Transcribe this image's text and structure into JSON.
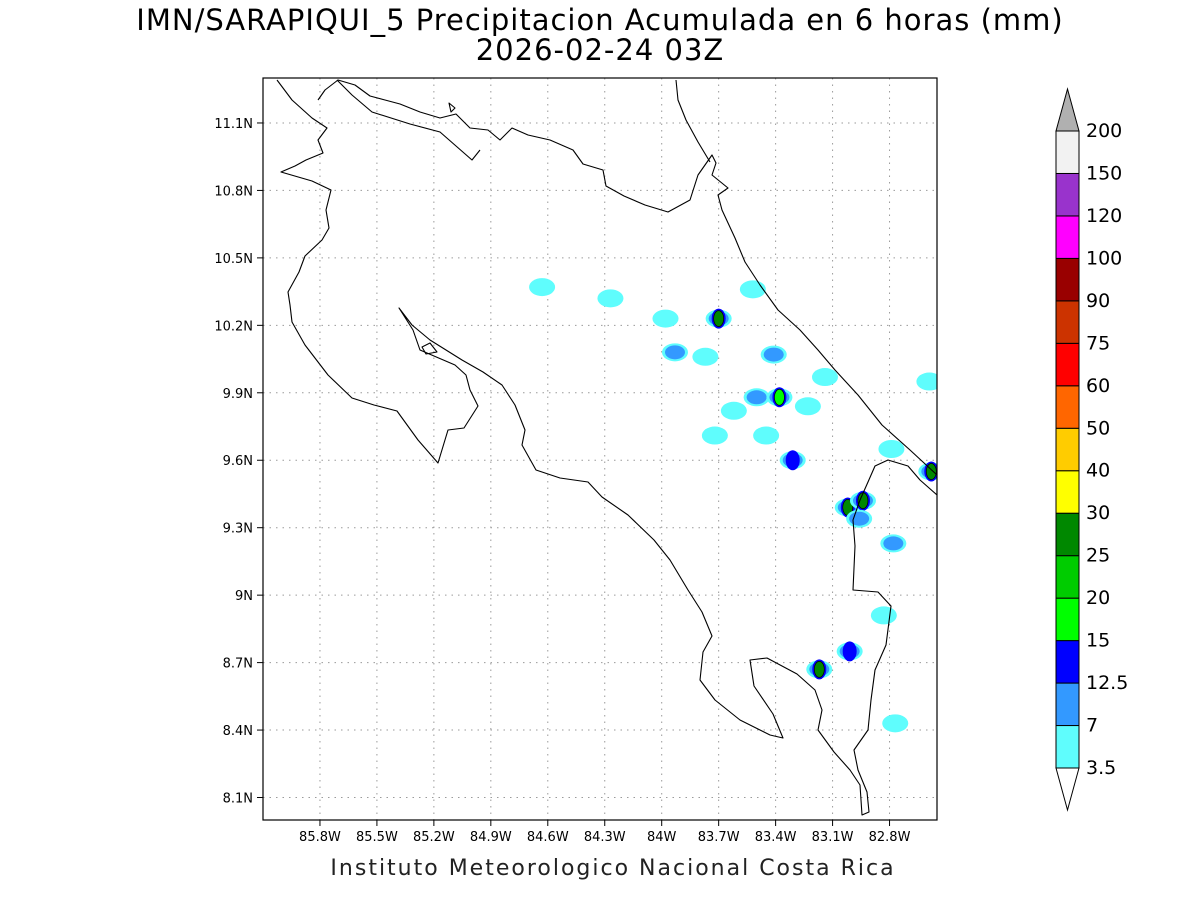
{
  "title": {
    "line1": "IMN/SARAPIQUI_5 Precipitacion Acumulada en 6 horas (mm)",
    "line2": "2026-02-24 03Z"
  },
  "footer": "Instituto Meteorologico Nacional Costa Rica",
  "map": {
    "lon_range": [
      -86.1,
      -82.55
    ],
    "lat_range": [
      8.0,
      11.3
    ],
    "lon_ticks": [
      {
        "v": -85.8,
        "label": "85.8W"
      },
      {
        "v": -85.5,
        "label": "85.5W"
      },
      {
        "v": -85.2,
        "label": "85.2W"
      },
      {
        "v": -84.9,
        "label": "84.9W"
      },
      {
        "v": -84.6,
        "label": "84.6W"
      },
      {
        "v": -84.3,
        "label": "84.3W"
      },
      {
        "v": -84.0,
        "label": "84W"
      },
      {
        "v": -83.7,
        "label": "83.7W"
      },
      {
        "v": -83.4,
        "label": "83.4W"
      },
      {
        "v": -83.1,
        "label": "83.1W"
      },
      {
        "v": -82.8,
        "label": "82.8W"
      }
    ],
    "lat_ticks": [
      {
        "v": 11.1,
        "label": "11.1N"
      },
      {
        "v": 10.8,
        "label": "10.8N"
      },
      {
        "v": 10.5,
        "label": "10.5N"
      },
      {
        "v": 10.2,
        "label": "10.2N"
      },
      {
        "v": 9.9,
        "label": "9.9N"
      },
      {
        "v": 9.6,
        "label": "9.6N"
      },
      {
        "v": 9.3,
        "label": "9.3N"
      },
      {
        "v": 9.0,
        "label": "9N"
      },
      {
        "v": 8.7,
        "label": "8.7N"
      },
      {
        "v": 8.4,
        "label": "8.4N"
      },
      {
        "v": 8.1,
        "label": "8.1N"
      }
    ],
    "grid": "dotted",
    "precip_cells": [
      {
        "lon": -84.63,
        "lat": 10.37,
        "value": 3.5
      },
      {
        "lon": -84.27,
        "lat": 10.32,
        "value": 3.5
      },
      {
        "lon": -83.98,
        "lat": 10.23,
        "value": 3.5
      },
      {
        "lon": -83.7,
        "lat": 10.23,
        "value": 25
      },
      {
        "lon": -83.52,
        "lat": 10.36,
        "value": 3.5
      },
      {
        "lon": -83.93,
        "lat": 10.08,
        "value": 7
      },
      {
        "lon": -83.77,
        "lat": 10.06,
        "value": 3.5
      },
      {
        "lon": -83.41,
        "lat": 10.07,
        "value": 7
      },
      {
        "lon": -83.5,
        "lat": 9.88,
        "value": 7
      },
      {
        "lon": -83.38,
        "lat": 9.88,
        "value": 15
      },
      {
        "lon": -83.62,
        "lat": 9.82,
        "value": 3.5
      },
      {
        "lon": -83.72,
        "lat": 9.71,
        "value": 3.5
      },
      {
        "lon": -83.23,
        "lat": 9.84,
        "value": 3.5
      },
      {
        "lon": -83.14,
        "lat": 9.97,
        "value": 3.5
      },
      {
        "lon": -83.45,
        "lat": 9.71,
        "value": 3.5
      },
      {
        "lon": -83.31,
        "lat": 9.6,
        "value": 12.5
      },
      {
        "lon": -83.02,
        "lat": 9.39,
        "value": 25
      },
      {
        "lon": -82.94,
        "lat": 9.42,
        "value": 25
      },
      {
        "lon": -82.96,
        "lat": 9.34,
        "value": 7
      },
      {
        "lon": -82.79,
        "lat": 9.65,
        "value": 3.5
      },
      {
        "lon": -82.58,
        "lat": 9.55,
        "value": 25
      },
      {
        "lon": -82.59,
        "lat": 9.95,
        "value": 3.5
      },
      {
        "lon": -82.78,
        "lat": 9.23,
        "value": 7
      },
      {
        "lon": -83.17,
        "lat": 8.67,
        "value": 25
      },
      {
        "lon": -83.01,
        "lat": 8.75,
        "value": 12.5
      },
      {
        "lon": -82.83,
        "lat": 8.91,
        "value": 3.5
      },
      {
        "lon": -82.77,
        "lat": 8.43,
        "value": 3.5
      }
    ]
  },
  "colorbar": {
    "levels": [
      "3.5",
      "7",
      "12.5",
      "15",
      "20",
      "25",
      "30",
      "40",
      "50",
      "60",
      "75",
      "90",
      "100",
      "120",
      "150",
      "200"
    ],
    "colors": [
      "#ffffff",
      "#5ffdfd",
      "#3399ff",
      "#0000ff",
      "#00ff00",
      "#00cc00",
      "#008800",
      "#ffff00",
      "#ffcc00",
      "#ff6600",
      "#ff0000",
      "#cc3300",
      "#990000",
      "#ff00ff",
      "#9933cc",
      "#f2f2f2",
      "#b0b0b0"
    ]
  }
}
